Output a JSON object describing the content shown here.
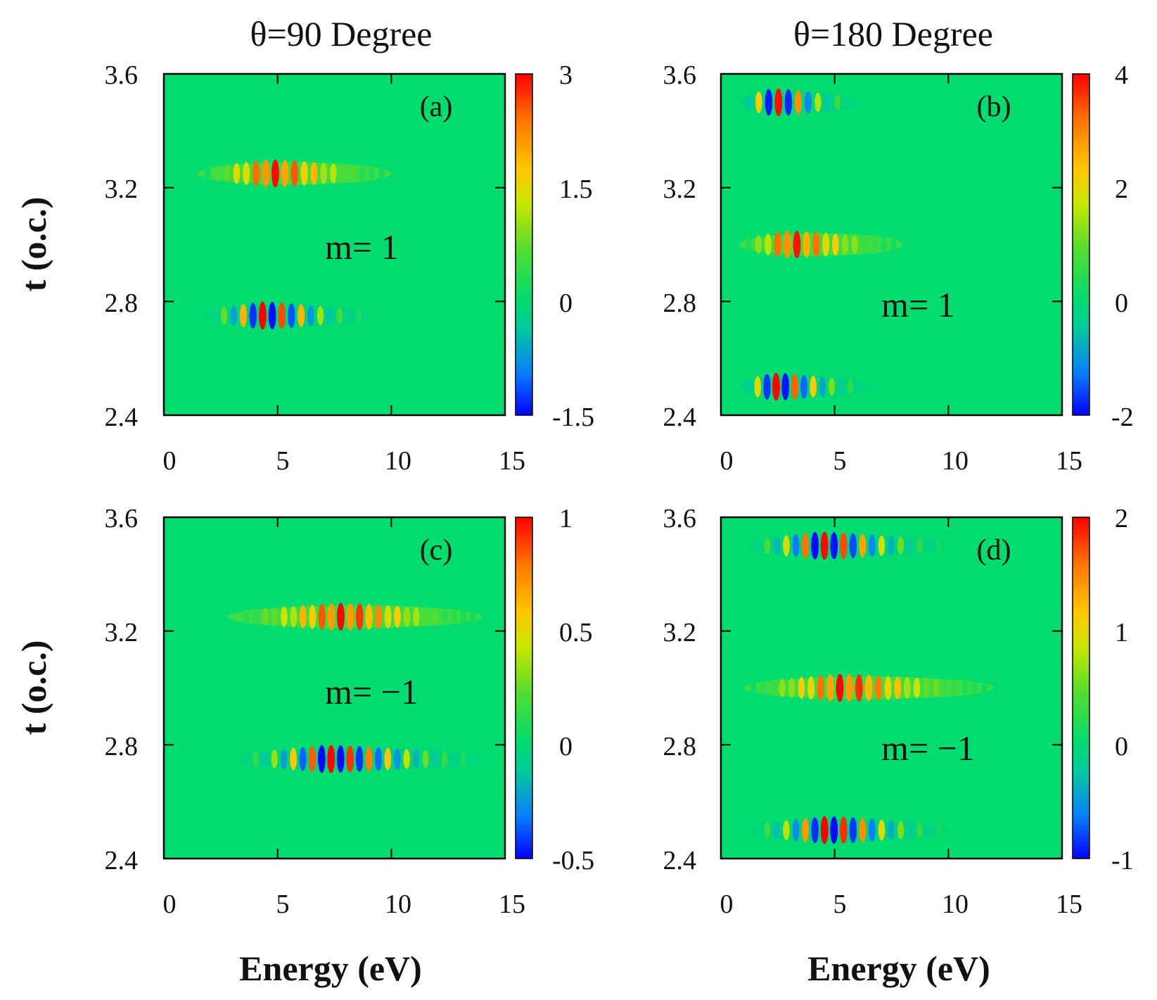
{
  "column_titles": [
    "θ=90 Degree",
    "θ=180 Degree"
  ],
  "xlabel": "Energy (eV)",
  "ylabel": "t (o.c.)",
  "colors": {
    "background": "#00dc6e",
    "frame": "#000000",
    "colormap": [
      "#0000ff",
      "#0a7bff",
      "#00c8a0",
      "#00dc6e",
      "#50dc32",
      "#c8e600",
      "#ffc800",
      "#ff7800",
      "#ff0000"
    ]
  },
  "chart_data": [
    {
      "type": "heatmap",
      "label": "(a)",
      "title": "θ=90 Degree",
      "annotation": "m= 1",
      "xlabel": "Energy (eV)",
      "ylabel": "t (o.c.)",
      "xlim": [
        0,
        15
      ],
      "ylim": [
        2.4,
        3.6
      ],
      "xticks": [
        "0",
        "5",
        "10",
        "15"
      ],
      "yticks": [
        "2.4",
        "2.8",
        "3.2",
        "3.6"
      ],
      "colorbar": {
        "range": [
          -1.5,
          3
        ],
        "ticks": [
          "-1.5",
          "0",
          "1.5",
          "3"
        ]
      },
      "bursts": [
        {
          "t_center": 3.25,
          "energy_start": 1.5,
          "energy_peak": 4.5,
          "energy_end": 10,
          "peak_value": 3,
          "oscillating_sign": false
        },
        {
          "t_center": 2.75,
          "energy_start": 1.8,
          "energy_peak": 4.2,
          "energy_end": 9,
          "peak_value": 3,
          "oscillating_sign": true
        }
      ]
    },
    {
      "type": "heatmap",
      "label": "(b)",
      "title": "θ=180 Degree",
      "annotation": "m= 1",
      "xlabel": "Energy (eV)",
      "ylabel": "t (o.c.)",
      "xlim": [
        0,
        15
      ],
      "ylim": [
        2.4,
        3.6
      ],
      "xticks": [
        "0",
        "5",
        "10",
        "15"
      ],
      "yticks": [
        "2.4",
        "2.8",
        "3.2",
        "3.6"
      ],
      "colorbar": {
        "range": [
          -2,
          4
        ],
        "ticks": [
          "-2",
          "0",
          "2",
          "4"
        ]
      },
      "bursts": [
        {
          "t_center": 3.5,
          "energy_start": 0.8,
          "energy_peak": 2.2,
          "energy_end": 6,
          "peak_value": 4,
          "oscillating_sign": true
        },
        {
          "t_center": 3.0,
          "energy_start": 0.8,
          "energy_peak": 2.8,
          "energy_end": 8,
          "peak_value": 4,
          "oscillating_sign": false
        },
        {
          "t_center": 2.5,
          "energy_start": 0.8,
          "energy_peak": 2.2,
          "energy_end": 6.5,
          "peak_value": 4,
          "oscillating_sign": true
        }
      ]
    },
    {
      "type": "heatmap",
      "label": "(c)",
      "title": "",
      "annotation": "m= −1",
      "xlabel": "Energy (eV)",
      "ylabel": "t (o.c.)",
      "xlim": [
        0,
        15
      ],
      "ylim": [
        2.4,
        3.6
      ],
      "xticks": [
        "0",
        "5",
        "10",
        "15"
      ],
      "yticks": [
        "2.4",
        "2.8",
        "3.2",
        "3.6"
      ],
      "colorbar": {
        "range": [
          -0.5,
          1
        ],
        "ticks": [
          "-0.5",
          "0",
          "0.5",
          "1"
        ]
      },
      "bursts": [
        {
          "t_center": 3.25,
          "energy_start": 2.8,
          "energy_peak": 7.5,
          "energy_end": 14,
          "peak_value": 1,
          "oscillating_sign": false
        },
        {
          "t_center": 2.75,
          "energy_start": 3.2,
          "energy_peak": 7.0,
          "energy_end": 14,
          "peak_value": 1,
          "oscillating_sign": true
        }
      ]
    },
    {
      "type": "heatmap",
      "label": "(d)",
      "title": "",
      "annotation": "m= −1",
      "xlabel": "Energy (eV)",
      "ylabel": "t (o.c.)",
      "xlim": [
        0,
        15
      ],
      "ylim": [
        2.4,
        3.6
      ],
      "xticks": [
        "0",
        "5",
        "10",
        "15"
      ],
      "yticks": [
        "2.4",
        "2.8",
        "3.2",
        "3.6"
      ],
      "colorbar": {
        "range": [
          -1,
          2
        ],
        "ticks": [
          "-1",
          "0",
          "1",
          "2"
        ]
      },
      "bursts": [
        {
          "t_center": 3.5,
          "energy_start": 1.2,
          "energy_peak": 4.2,
          "energy_end": 10,
          "peak_value": 2,
          "oscillating_sign": true
        },
        {
          "t_center": 3.0,
          "energy_start": 1.0,
          "energy_peak": 5.0,
          "energy_end": 12,
          "peak_value": 2,
          "oscillating_sign": false
        },
        {
          "t_center": 2.5,
          "energy_start": 1.2,
          "energy_peak": 4.5,
          "energy_end": 10,
          "peak_value": 2,
          "oscillating_sign": true
        }
      ]
    }
  ]
}
